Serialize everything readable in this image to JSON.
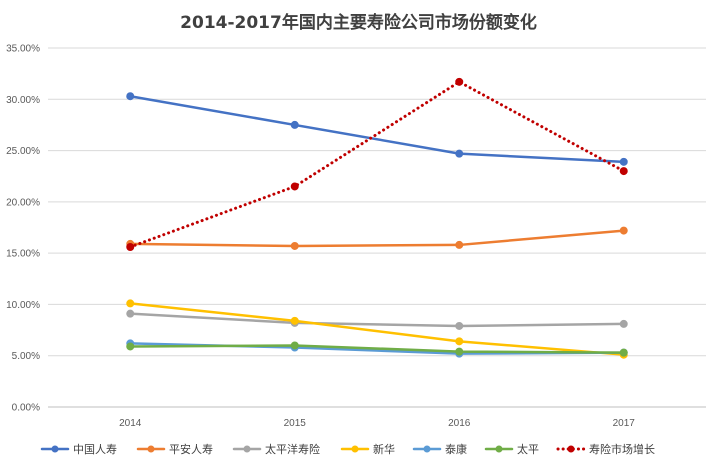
{
  "chart_data": {
    "type": "line",
    "title": "2014-2017年国内主要寿险公司市场份额变化",
    "xlabel": "",
    "ylabel": "",
    "categories": [
      "2014",
      "2015",
      "2016",
      "2017"
    ],
    "y_ticks": [
      "0.00%",
      "5.00%",
      "10.00%",
      "15.00%",
      "20.00%",
      "25.00%",
      "30.00%",
      "35.00%"
    ],
    "ylim": [
      0,
      35
    ],
    "grid": true,
    "legend_position": "bottom",
    "series": [
      {
        "name": "中国人寿",
        "values": [
          30.3,
          27.5,
          24.7,
          23.9
        ],
        "color": "#4472C4",
        "style": "solid"
      },
      {
        "name": "平安人寿",
        "values": [
          15.9,
          15.7,
          15.8,
          17.2
        ],
        "color": "#ED7D31",
        "style": "solid"
      },
      {
        "name": "太平洋寿险",
        "values": [
          9.1,
          8.2,
          7.9,
          8.1
        ],
        "color": "#A5A5A5",
        "style": "solid"
      },
      {
        "name": "新华",
        "values": [
          10.1,
          8.4,
          6.4,
          5.1
        ],
        "color": "#FFC000",
        "style": "solid"
      },
      {
        "name": "泰康",
        "values": [
          6.2,
          5.8,
          5.2,
          5.3
        ],
        "color": "#5B9BD5",
        "style": "solid"
      },
      {
        "name": "太平",
        "values": [
          5.9,
          6.0,
          5.4,
          5.3
        ],
        "color": "#70AD47",
        "style": "solid"
      },
      {
        "name": "寿险市场增长",
        "values": [
          15.6,
          21.5,
          31.7,
          23.0
        ],
        "color": "#C00000",
        "style": "dotted"
      }
    ]
  }
}
